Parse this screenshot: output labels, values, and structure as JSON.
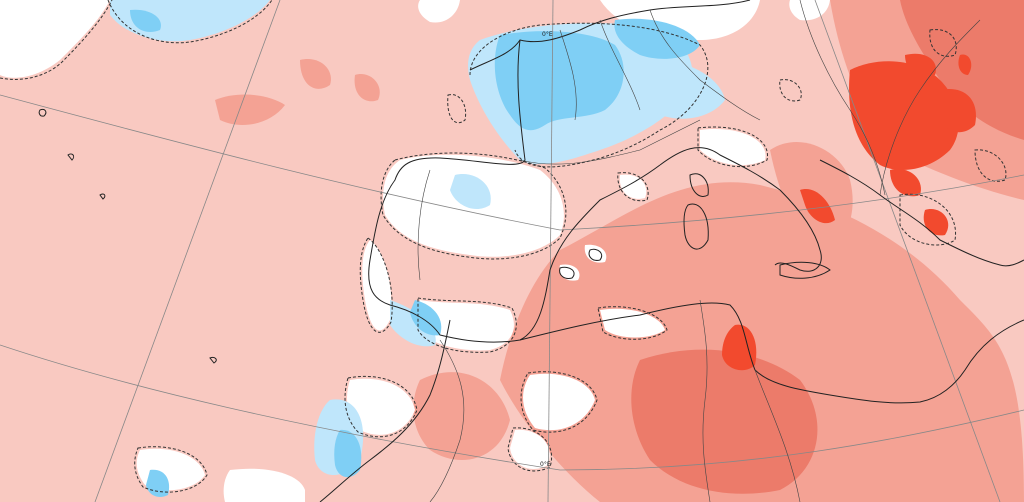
{
  "map": {
    "graticule_labels": {
      "top_meridian": "0°E",
      "bottom_meridian": "0°E"
    },
    "anomaly_colors": {
      "cold_strong": "#7fcff5",
      "cold_weak": "#bfe6fb",
      "near_normal": "#ffffff",
      "warm_weak": "#f9c9c1",
      "warm_moderate": "#f4a294",
      "warm_strong": "#ec7b6a",
      "warm_very_strong": "#f24a2e"
    }
  }
}
